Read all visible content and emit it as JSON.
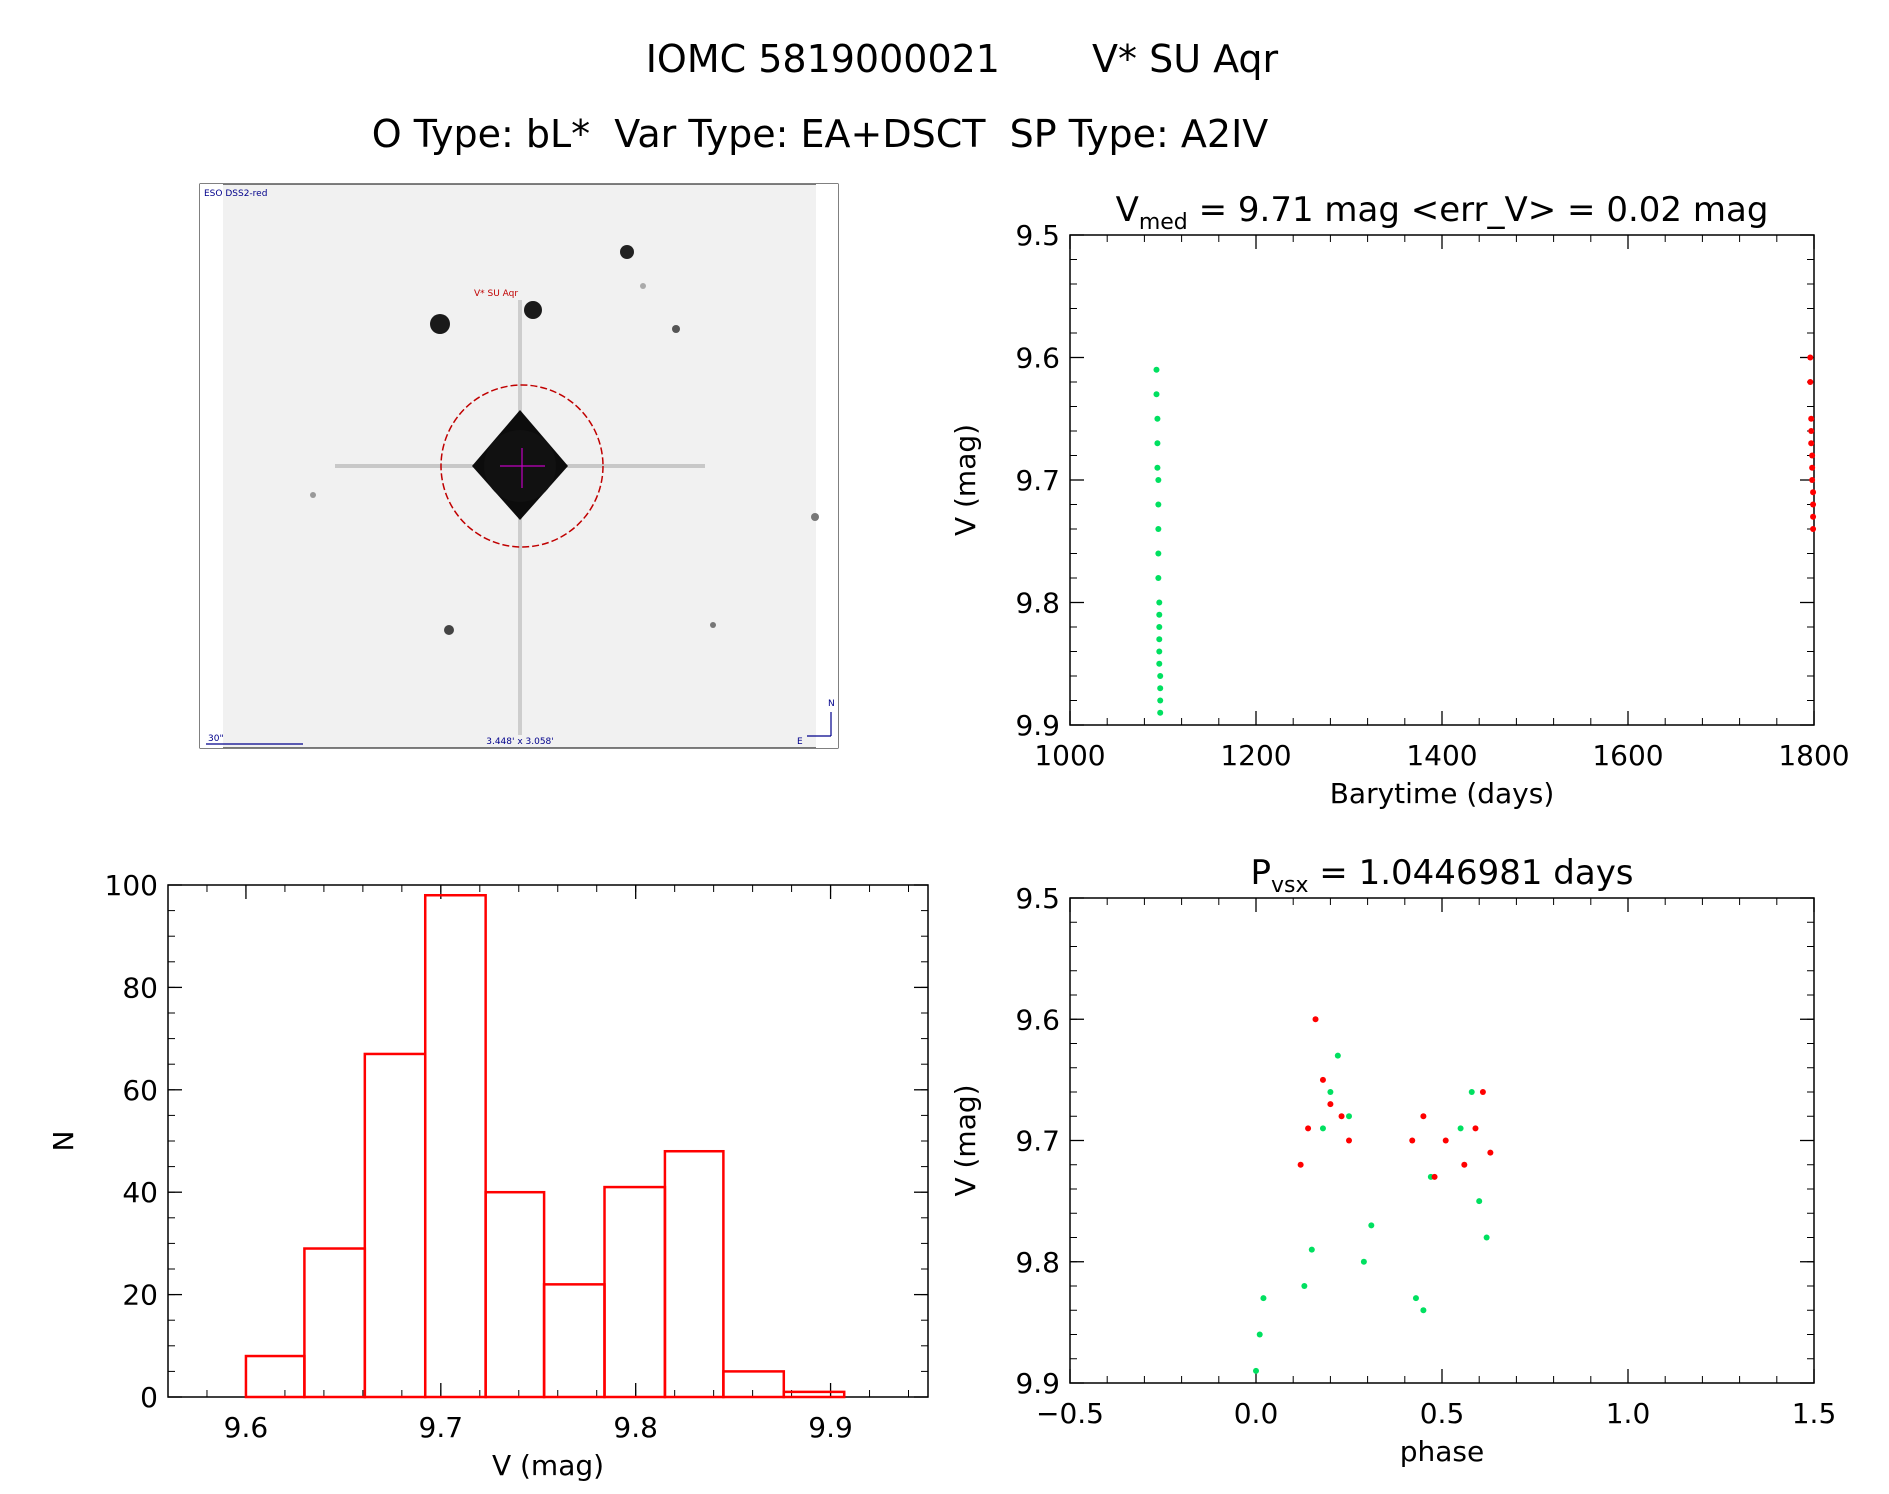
{
  "header": {
    "line1_id": "IOMC 5819000021",
    "line1_name": "V* SU Aqr",
    "line2": "O Type: bL*  Var Type: EA+DSCT  SP Type: A2IV"
  },
  "finder": {
    "survey_label": "ESO DSS2-red",
    "target_label": "V* SU Aqr",
    "scale_label": "30\"",
    "fov_label": "3.448' x 3.058'",
    "north_label": "N",
    "east_label": "E"
  },
  "colors": {
    "green": "#00e060",
    "red": "#ff0000",
    "axis": "#000000",
    "target_circle": "#c00000",
    "label_blue": "#00008b"
  },
  "chart_data": [
    {
      "id": "lightcurve",
      "type": "scatter",
      "title_prefix": "V",
      "title_sub": "med",
      "title_rest": " = 9.71 mag <err_V> = 0.02 mag",
      "xlabel": "Barytime (days)",
      "ylabel": "V (mag)",
      "xlim": [
        1000,
        1800
      ],
      "ylim": [
        9.5,
        9.9
      ],
      "y_inverted": true,
      "xticks": [
        "1000",
        "1200",
        "1400",
        "1600",
        "1800"
      ],
      "yticks": [
        "9.5",
        "9.6",
        "9.7",
        "9.8",
        "9.9"
      ],
      "series": [
        {
          "color": "green",
          "x": [
            1093,
            1093,
            1094,
            1094,
            1094,
            1095,
            1095,
            1095,
            1095,
            1095,
            1096,
            1096,
            1096,
            1096,
            1096,
            1096,
            1097,
            1097,
            1097,
            1097
          ],
          "y": [
            9.61,
            9.63,
            9.65,
            9.67,
            9.69,
            9.7,
            9.72,
            9.74,
            9.76,
            9.78,
            9.8,
            9.81,
            9.82,
            9.83,
            9.84,
            9.85,
            9.86,
            9.87,
            9.88,
            9.89
          ]
        },
        {
          "color": "red",
          "x": [
            1796,
            1796,
            1797,
            1797,
            1797,
            1798,
            1798,
            1798,
            1799,
            1799,
            1799,
            1799
          ],
          "y": [
            9.6,
            9.62,
            9.65,
            9.66,
            9.67,
            9.68,
            9.69,
            9.7,
            9.71,
            9.72,
            9.73,
            9.74
          ]
        }
      ]
    },
    {
      "id": "histogram",
      "type": "bar",
      "xlabel": "V (mag)",
      "ylabel": "N",
      "xlim": [
        9.56,
        9.95
      ],
      "ylim": [
        0,
        100
      ],
      "xticks": [
        "9.6",
        "9.7",
        "9.8",
        "9.9"
      ],
      "yticks": [
        "0",
        "20",
        "40",
        "60",
        "80",
        "100"
      ],
      "bin_edges": [
        9.6,
        9.63,
        9.661,
        9.692,
        9.723,
        9.753,
        9.784,
        9.815,
        9.845,
        9.876,
        9.907
      ],
      "values": [
        8,
        29,
        67,
        98,
        40,
        22,
        41,
        48,
        5,
        1
      ]
    },
    {
      "id": "phased",
      "type": "scatter",
      "title_prefix": "P",
      "title_sub": "vsx",
      "title_rest": " = 1.0446981 days",
      "xlabel": "phase",
      "ylabel": "V (mag)",
      "xlim": [
        -0.5,
        1.5
      ],
      "ylim": [
        9.5,
        9.9
      ],
      "y_inverted": true,
      "xticks": [
        "−0.5",
        "0.0",
        "0.5",
        "1.0",
        "1.5"
      ],
      "yticks": [
        "9.5",
        "9.6",
        "9.7",
        "9.8",
        "9.9"
      ],
      "series": [
        {
          "color": "green",
          "x": [
            0.0,
            0.01,
            0.02,
            0.13,
            0.15,
            0.18,
            0.2,
            0.22,
            0.25,
            0.29,
            0.31,
            0.43,
            0.45,
            0.47,
            0.55,
            0.58,
            0.6,
            0.62
          ],
          "y": [
            9.89,
            9.86,
            9.83,
            9.82,
            9.79,
            9.69,
            9.66,
            9.63,
            9.68,
            9.8,
            9.77,
            9.83,
            9.84,
            9.73,
            9.69,
            9.66,
            9.75,
            9.78
          ]
        },
        {
          "color": "red",
          "x": [
            0.12,
            0.14,
            0.16,
            0.18,
            0.2,
            0.23,
            0.25,
            0.42,
            0.45,
            0.48,
            0.51,
            0.56,
            0.59,
            0.61,
            0.63
          ],
          "y": [
            9.72,
            9.69,
            9.6,
            9.65,
            9.67,
            9.68,
            9.7,
            9.7,
            9.68,
            9.73,
            9.7,
            9.72,
            9.69,
            9.66,
            9.71
          ]
        }
      ]
    }
  ]
}
